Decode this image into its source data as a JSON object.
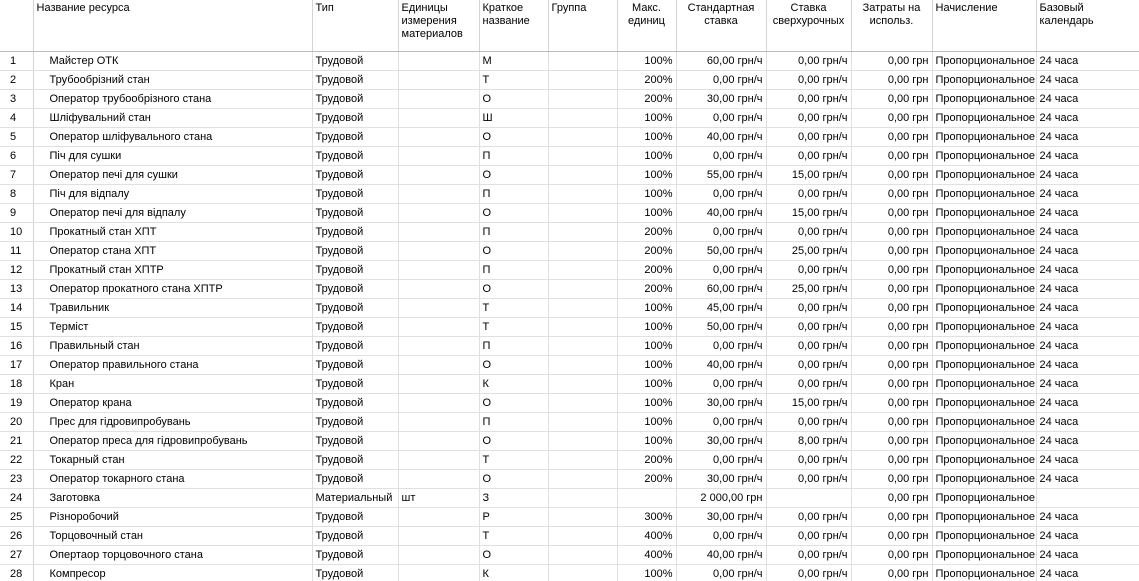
{
  "columns": {
    "id": "",
    "name": "Название ресурса",
    "type": "Тип",
    "units": "Единицы измерения материалов",
    "short": "Краткое название",
    "group": "Группа",
    "max": "Макс. единиц",
    "std_rate": "Стандартная ставка",
    "ovt_rate": "Ставка сверхурочных",
    "cost_use": "Затраты на использ.",
    "accrual": "Начисление",
    "calendar": "Базовый календарь"
  },
  "rows": [
    {
      "id": "1",
      "name": "Майстер ОТК",
      "type": "Трудовой",
      "units": "",
      "short": "М",
      "group": "",
      "max": "100%",
      "std": "60,00 грн/ч",
      "ovt": "0,00 грн/ч",
      "cost": "0,00 грн",
      "accrual": "Пропорциональное",
      "calendar": "24 часа"
    },
    {
      "id": "2",
      "name": "Трубообрізний стан",
      "type": "Трудовой",
      "units": "",
      "short": "Т",
      "group": "",
      "max": "200%",
      "std": "0,00 грн/ч",
      "ovt": "0,00 грн/ч",
      "cost": "0,00 грн",
      "accrual": "Пропорциональное",
      "calendar": "24 часа"
    },
    {
      "id": "3",
      "name": "Оператор трубообрізного стана",
      "type": "Трудовой",
      "units": "",
      "short": "О",
      "group": "",
      "max": "200%",
      "std": "30,00 грн/ч",
      "ovt": "0,00 грн/ч",
      "cost": "0,00 грн",
      "accrual": "Пропорциональное",
      "calendar": "24 часа"
    },
    {
      "id": "4",
      "name": "Шліфувальний стан",
      "type": "Трудовой",
      "units": "",
      "short": "Ш",
      "group": "",
      "max": "100%",
      "std": "0,00 грн/ч",
      "ovt": "0,00 грн/ч",
      "cost": "0,00 грн",
      "accrual": "Пропорциональное",
      "calendar": "24 часа"
    },
    {
      "id": "5",
      "name": "Оператор шліфувального стана",
      "type": "Трудовой",
      "units": "",
      "short": "О",
      "group": "",
      "max": "100%",
      "std": "40,00 грн/ч",
      "ovt": "0,00 грн/ч",
      "cost": "0,00 грн",
      "accrual": "Пропорциональное",
      "calendar": "24 часа"
    },
    {
      "id": "6",
      "name": "Піч для сушки",
      "type": "Трудовой",
      "units": "",
      "short": "П",
      "group": "",
      "max": "100%",
      "std": "0,00 грн/ч",
      "ovt": "0,00 грн/ч",
      "cost": "0,00 грн",
      "accrual": "Пропорциональное",
      "calendar": "24 часа"
    },
    {
      "id": "7",
      "name": "Оператор печі для сушки",
      "type": "Трудовой",
      "units": "",
      "short": "О",
      "group": "",
      "max": "100%",
      "std": "55,00 грн/ч",
      "ovt": "15,00 грн/ч",
      "cost": "0,00 грн",
      "accrual": "Пропорциональное",
      "calendar": "24 часа"
    },
    {
      "id": "8",
      "name": "Піч для відпалу",
      "type": "Трудовой",
      "units": "",
      "short": "П",
      "group": "",
      "max": "100%",
      "std": "0,00 грн/ч",
      "ovt": "0,00 грн/ч",
      "cost": "0,00 грн",
      "accrual": "Пропорциональное",
      "calendar": "24 часа"
    },
    {
      "id": "9",
      "name": "Оператор печі для відпалу",
      "type": "Трудовой",
      "units": "",
      "short": "О",
      "group": "",
      "max": "100%",
      "std": "40,00 грн/ч",
      "ovt": "15,00 грн/ч",
      "cost": "0,00 грн",
      "accrual": "Пропорциональное",
      "calendar": "24 часа"
    },
    {
      "id": "10",
      "name": "Прокатный стан ХПТ",
      "type": "Трудовой",
      "units": "",
      "short": "П",
      "group": "",
      "max": "200%",
      "std": "0,00 грн/ч",
      "ovt": "0,00 грн/ч",
      "cost": "0,00 грн",
      "accrual": "Пропорциональное",
      "calendar": "24 часа"
    },
    {
      "id": "11",
      "name": "Оператор стана ХПТ",
      "type": "Трудовой",
      "units": "",
      "short": "О",
      "group": "",
      "max": "200%",
      "std": "50,00 грн/ч",
      "ovt": "25,00 грн/ч",
      "cost": "0,00 грн",
      "accrual": "Пропорциональное",
      "calendar": "24 часа"
    },
    {
      "id": "12",
      "name": "Прокатный стан ХПТР",
      "type": "Трудовой",
      "units": "",
      "short": "П",
      "group": "",
      "max": "200%",
      "std": "0,00 грн/ч",
      "ovt": "0,00 грн/ч",
      "cost": "0,00 грн",
      "accrual": "Пропорциональное",
      "calendar": "24 часа"
    },
    {
      "id": "13",
      "name": "Оператор прокатного стана ХПТР",
      "type": "Трудовой",
      "units": "",
      "short": "О",
      "group": "",
      "max": "200%",
      "std": "60,00 грн/ч",
      "ovt": "25,00 грн/ч",
      "cost": "0,00 грн",
      "accrual": "Пропорциональное",
      "calendar": "24 часа"
    },
    {
      "id": "14",
      "name": "Травильник",
      "type": "Трудовой",
      "units": "",
      "short": "Т",
      "group": "",
      "max": "100%",
      "std": "45,00 грн/ч",
      "ovt": "0,00 грн/ч",
      "cost": "0,00 грн",
      "accrual": "Пропорциональное",
      "calendar": "24 часа"
    },
    {
      "id": "15",
      "name": "Терміст",
      "type": "Трудовой",
      "units": "",
      "short": "Т",
      "group": "",
      "max": "100%",
      "std": "50,00 грн/ч",
      "ovt": "0,00 грн/ч",
      "cost": "0,00 грн",
      "accrual": "Пропорциональное",
      "calendar": "24 часа"
    },
    {
      "id": "16",
      "name": "Правильный стан",
      "type": "Трудовой",
      "units": "",
      "short": "П",
      "group": "",
      "max": "100%",
      "std": "0,00 грн/ч",
      "ovt": "0,00 грн/ч",
      "cost": "0,00 грн",
      "accrual": "Пропорциональное",
      "calendar": "24 часа"
    },
    {
      "id": "17",
      "name": "Оператор правильного стана",
      "type": "Трудовой",
      "units": "",
      "short": "О",
      "group": "",
      "max": "100%",
      "std": "40,00 грн/ч",
      "ovt": "0,00 грн/ч",
      "cost": "0,00 грн",
      "accrual": "Пропорциональное",
      "calendar": "24 часа"
    },
    {
      "id": "18",
      "name": "Кран",
      "type": "Трудовой",
      "units": "",
      "short": "К",
      "group": "",
      "max": "100%",
      "std": "0,00 грн/ч",
      "ovt": "0,00 грн/ч",
      "cost": "0,00 грн",
      "accrual": "Пропорциональное",
      "calendar": "24 часа"
    },
    {
      "id": "19",
      "name": "Оператор крана",
      "type": "Трудовой",
      "units": "",
      "short": "О",
      "group": "",
      "max": "100%",
      "std": "30,00 грн/ч",
      "ovt": "15,00 грн/ч",
      "cost": "0,00 грн",
      "accrual": "Пропорциональное",
      "calendar": "24 часа"
    },
    {
      "id": "20",
      "name": "Прес для гідровипробувань",
      "type": "Трудовой",
      "units": "",
      "short": "П",
      "group": "",
      "max": "100%",
      "std": "0,00 грн/ч",
      "ovt": "0,00 грн/ч",
      "cost": "0,00 грн",
      "accrual": "Пропорциональное",
      "calendar": "24 часа"
    },
    {
      "id": "21",
      "name": "Оператор преса для гідровипробувань",
      "type": "Трудовой",
      "units": "",
      "short": "О",
      "group": "",
      "max": "100%",
      "std": "30,00 грн/ч",
      "ovt": "8,00 грн/ч",
      "cost": "0,00 грн",
      "accrual": "Пропорциональное",
      "calendar": "24 часа"
    },
    {
      "id": "22",
      "name": "Токарный стан",
      "type": "Трудовой",
      "units": "",
      "short": "Т",
      "group": "",
      "max": "200%",
      "std": "0,00 грн/ч",
      "ovt": "0,00 грн/ч",
      "cost": "0,00 грн",
      "accrual": "Пропорциональное",
      "calendar": "24 часа"
    },
    {
      "id": "23",
      "name": "Оператор токарного стана",
      "type": "Трудовой",
      "units": "",
      "short": "О",
      "group": "",
      "max": "200%",
      "std": "30,00 грн/ч",
      "ovt": "0,00 грн/ч",
      "cost": "0,00 грн",
      "accrual": "Пропорциональное",
      "calendar": "24 часа"
    },
    {
      "id": "24",
      "name": "Заготовка",
      "type": "Материальный",
      "units": "шт",
      "short": "З",
      "group": "",
      "max": "",
      "std": "2 000,00 грн",
      "ovt": "",
      "cost": "0,00 грн",
      "accrual": "Пропорциональное",
      "calendar": ""
    },
    {
      "id": "25",
      "name": "Різноробочий",
      "type": "Трудовой",
      "units": "",
      "short": "Р",
      "group": "",
      "max": "300%",
      "std": "30,00 грн/ч",
      "ovt": "0,00 грн/ч",
      "cost": "0,00 грн",
      "accrual": "Пропорциональное",
      "calendar": "24 часа"
    },
    {
      "id": "26",
      "name": "Торцовочный стан",
      "type": "Трудовой",
      "units": "",
      "short": "Т",
      "group": "",
      "max": "400%",
      "std": "0,00 грн/ч",
      "ovt": "0,00 грн/ч",
      "cost": "0,00 грн",
      "accrual": "Пропорциональное",
      "calendar": "24 часа"
    },
    {
      "id": "27",
      "name": "Опертаор торцовочного стана",
      "type": "Трудовой",
      "units": "",
      "short": "О",
      "group": "",
      "max": "400%",
      "std": "40,00 грн/ч",
      "ovt": "0,00 грн/ч",
      "cost": "0,00 грн",
      "accrual": "Пропорциональное",
      "calendar": "24 часа"
    },
    {
      "id": "28",
      "name": "Компресор",
      "type": "Трудовой",
      "units": "",
      "short": "К",
      "group": "",
      "max": "100%",
      "std": "0,00 грн/ч",
      "ovt": "0,00 грн/ч",
      "cost": "0,00 грн",
      "accrual": "Пропорциональное",
      "calendar": "24 часа"
    }
  ]
}
